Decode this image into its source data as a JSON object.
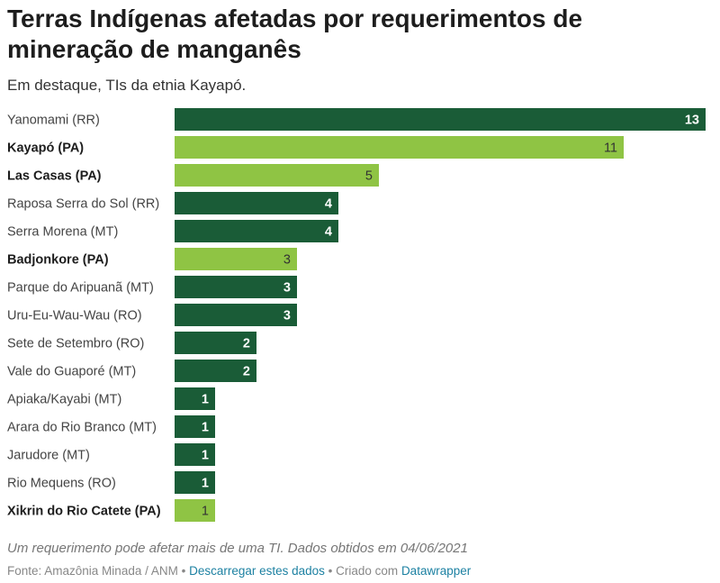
{
  "header": {
    "title": "Terras Indígenas afetadas por requerimentos de mineração de manganês",
    "subtitle": "Em destaque, TIs da etnia Kayapó."
  },
  "colors": {
    "default_bar": "#1a5c37",
    "highlight_bar": "#8fc444",
    "default_value_text": "#ffffff",
    "highlight_value_text": "#333333",
    "link": "#1d81a2"
  },
  "chart_data": {
    "type": "bar",
    "orientation": "horizontal",
    "categories": [
      "Yanomami (RR)",
      "Kayapó (PA)",
      "Las Casas (PA)",
      "Raposa Serra do Sol (RR)",
      "Serra Morena (MT)",
      "Badjonkore (PA)",
      "Parque do Aripuanã (MT)",
      "Uru-Eu-Wau-Wau (RO)",
      "Sete de Setembro (RO)",
      "Vale do Guaporé (MT)",
      "Apiaka/Kayabi (MT)",
      "Arara do Rio Branco (MT)",
      "Jarudore (MT)",
      "Rio Mequens (RO)",
      "Xikrin do Rio Catete (PA)"
    ],
    "values": [
      13,
      11,
      5,
      4,
      4,
      3,
      3,
      3,
      2,
      2,
      1,
      1,
      1,
      1,
      1
    ],
    "highlighted": [
      false,
      true,
      true,
      false,
      false,
      true,
      false,
      false,
      false,
      false,
      false,
      false,
      false,
      false,
      true
    ],
    "xlim": [
      0,
      13
    ],
    "data_labels": true
  },
  "footer": {
    "note": "Um requerimento pode afetar mais de uma TI. Dados obtidos em 04/06/2021",
    "source": "Fonte: Amazônia Minada / ANM",
    "separator": " • ",
    "download_link": "Descarregar estes dados",
    "created_with": "Criado com",
    "tool_link": "Datawrapper"
  }
}
